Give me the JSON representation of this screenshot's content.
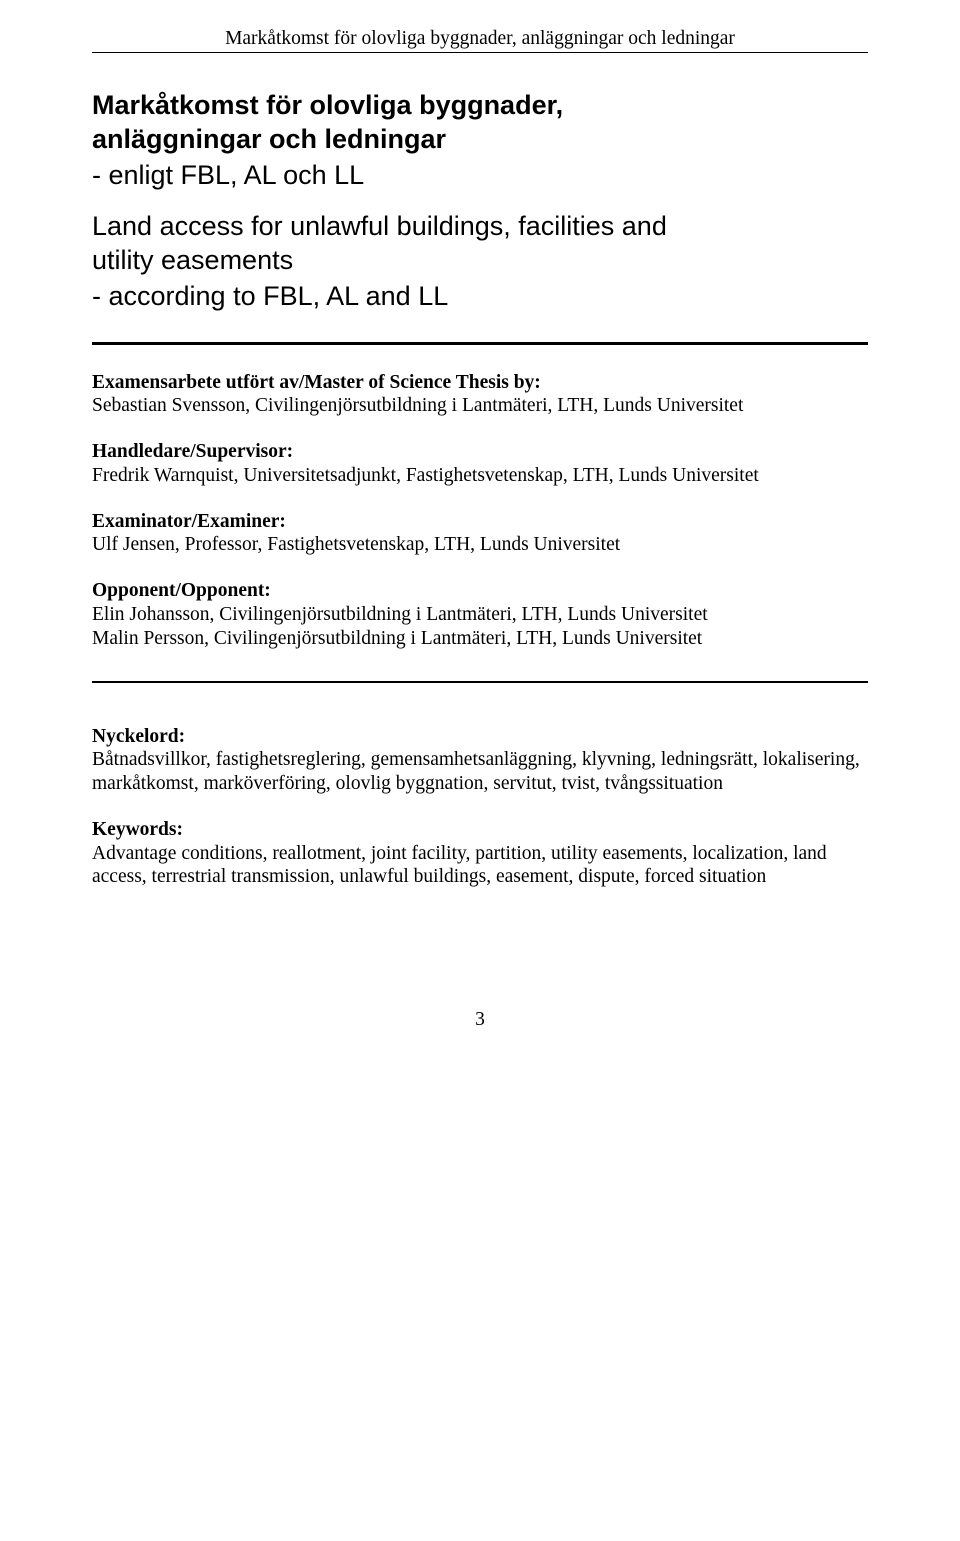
{
  "runningHeader": "Markåtkomst för olovliga byggnader, anläggningar och ledningar",
  "title": {
    "sv_line1": "Markåtkomst för olovliga byggnader,",
    "sv_line2": "anläggningar och ledningar",
    "sv_sub": "- enligt FBL, AL och LL",
    "en_line1": "Land access for unlawful buildings, facilities and",
    "en_line2": "utility easements",
    "en_sub": "- according to FBL, AL and LL"
  },
  "examensarbete": {
    "label": "Examensarbete utfört av/Master of Science Thesis by:",
    "text": "Sebastian Svensson, Civilingenjörsutbildning i Lantmäteri, LTH, Lunds Universitet"
  },
  "supervisor": {
    "label": "Handledare/Supervisor:",
    "text": "Fredrik Warnquist, Universitetsadjunkt, Fastighetsvetenskap, LTH, Lunds Universitet"
  },
  "examiner": {
    "label": "Examinator/Examiner:",
    "text": "Ulf Jensen, Professor, Fastighetsvetenskap, LTH, Lunds Universitet"
  },
  "opponent": {
    "label": "Opponent/Opponent:",
    "line1": "Elin Johansson, Civilingenjörsutbildning i Lantmäteri, LTH, Lunds Universitet",
    "line2": "Malin Persson, Civilingenjörsutbildning i Lantmäteri, LTH, Lunds Universitet"
  },
  "nyckelord": {
    "label": "Nyckelord:",
    "text": "Båtnadsvillkor, fastighetsreglering, gemensamhetsanläggning, klyvning, ledningsrätt, lokalisering, markåtkomst, marköverföring, olovlig byggnation, servitut, tvist, tvångssituation"
  },
  "keywords": {
    "label": "Keywords:",
    "text": "Advantage conditions, reallotment, joint facility, partition, utility easements, localization, land access, terrestrial transmission, unlawful buildings, easement, dispute, forced situation"
  },
  "pageNumber": "3"
}
